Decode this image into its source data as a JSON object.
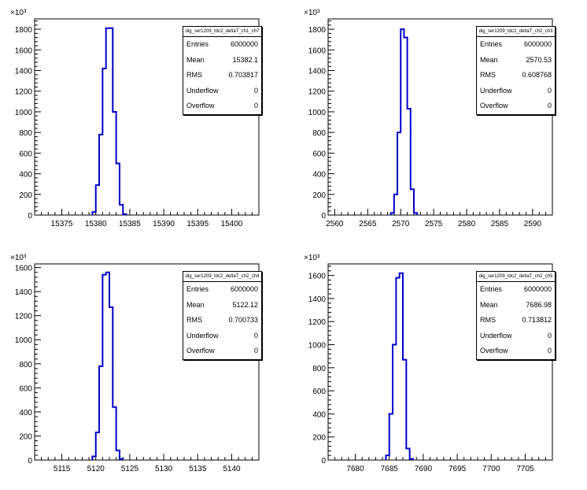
{
  "colors": {
    "hist": "#0000cc",
    "axis": "#000000",
    "background": "#ffffff"
  },
  "chart_data": [
    {
      "type": "histogram",
      "stats_title": "dig_ser1209_tdc2_deltaT_ch1_ch7",
      "stats": [
        {
          "label": "Entries",
          "value": "6000000"
        },
        {
          "label": "Mean",
          "value": "15382.1"
        },
        {
          "label": "RMS",
          "value": "0.703817"
        },
        {
          "label": "Underflow",
          "value": "0"
        },
        {
          "label": "Overflow",
          "value": "0"
        }
      ],
      "xlim": [
        15371,
        15404
      ],
      "ylim": [
        0,
        1900
      ],
      "y_multiplier_label": "×10³",
      "x_ticks": [
        "15375",
        "15380",
        "15385",
        "15390",
        "15395",
        "15400"
      ],
      "y_ticks": [
        "0",
        "200",
        "400",
        "600",
        "800",
        "1000",
        "1200",
        "1400",
        "1600",
        "1800"
      ],
      "bin_width": 0.5,
      "bins": [
        {
          "x": 15379.5,
          "y": 30
        },
        {
          "x": 15380,
          "y": 290
        },
        {
          "x": 15380.5,
          "y": 780
        },
        {
          "x": 15381,
          "y": 1420
        },
        {
          "x": 15381.5,
          "y": 1810
        },
        {
          "x": 15382,
          "y": 1810
        },
        {
          "x": 15382.5,
          "y": 1000
        },
        {
          "x": 15383,
          "y": 500
        },
        {
          "x": 15383.5,
          "y": 100
        },
        {
          "x": 15384,
          "y": 10
        }
      ]
    },
    {
      "type": "histogram",
      "stats_title": "dig_ser1209_tdc2_deltaT_ch2_ch3",
      "stats": [
        {
          "label": "Entries",
          "value": "6000000"
        },
        {
          "label": "Mean",
          "value": "2570.53"
        },
        {
          "label": "RMS",
          "value": "0.608768"
        },
        {
          "label": "Underflow",
          "value": "0"
        },
        {
          "label": "Overflow",
          "value": "0"
        }
      ],
      "xlim": [
        2559,
        2593
      ],
      "ylim": [
        0,
        1900
      ],
      "y_multiplier_label": "×10³",
      "x_ticks": [
        "2560",
        "2565",
        "2570",
        "2575",
        "2580",
        "2585",
        "2590"
      ],
      "y_ticks": [
        "0",
        "200",
        "400",
        "600",
        "800",
        "1000",
        "1200",
        "1400",
        "1600",
        "1800"
      ],
      "bin_width": 0.5,
      "bins": [
        {
          "x": 2568.5,
          "y": 20
        },
        {
          "x": 2569,
          "y": 200
        },
        {
          "x": 2569.5,
          "y": 800
        },
        {
          "x": 2570,
          "y": 1800
        },
        {
          "x": 2570.5,
          "y": 1720
        },
        {
          "x": 2571,
          "y": 1030
        },
        {
          "x": 2571.5,
          "y": 250
        },
        {
          "x": 2572,
          "y": 20
        }
      ]
    },
    {
      "type": "histogram",
      "stats_title": "dig_ser1209_tdc2_deltaT_ch2_ch4",
      "stats": [
        {
          "label": "Entries",
          "value": "6000000"
        },
        {
          "label": "Mean",
          "value": "5122.12"
        },
        {
          "label": "RMS",
          "value": "0.700733"
        },
        {
          "label": "Underflow",
          "value": "0"
        },
        {
          "label": "Overflow",
          "value": "0"
        }
      ],
      "xlim": [
        5111,
        5144
      ],
      "ylim": [
        0,
        1630
      ],
      "y_multiplier_label": "×10³",
      "x_ticks": [
        "5115",
        "5120",
        "5125",
        "5130",
        "5135",
        "5140"
      ],
      "y_ticks": [
        "0",
        "200",
        "400",
        "600",
        "800",
        "1000",
        "1200",
        "1400",
        "1600"
      ],
      "bin_width": 0.5,
      "bins": [
        {
          "x": 5119.5,
          "y": 30
        },
        {
          "x": 5120,
          "y": 230
        },
        {
          "x": 5120.5,
          "y": 780
        },
        {
          "x": 5121,
          "y": 1540
        },
        {
          "x": 5121.5,
          "y": 1560
        },
        {
          "x": 5122,
          "y": 1270
        },
        {
          "x": 5122.5,
          "y": 440
        },
        {
          "x": 5123,
          "y": 80
        },
        {
          "x": 5123.5,
          "y": 10
        }
      ]
    },
    {
      "type": "histogram",
      "stats_title": "dig_ser1209_tdc2_deltaT_ch2_ch5",
      "stats": [
        {
          "label": "Entries",
          "value": "6000000"
        },
        {
          "label": "Mean",
          "value": "7686.98"
        },
        {
          "label": "RMS",
          "value": "0.713812"
        },
        {
          "label": "Underflow",
          "value": "0"
        },
        {
          "label": "Overflow",
          "value": "0"
        }
      ],
      "xlim": [
        7676,
        7709
      ],
      "ylim": [
        0,
        1700
      ],
      "y_multiplier_label": "×10³",
      "x_ticks": [
        "7680",
        "7685",
        "7690",
        "7695",
        "7700",
        "7705"
      ],
      "y_ticks": [
        "0",
        "200",
        "400",
        "600",
        "800",
        "1000",
        "1200",
        "1400",
        "1600"
      ],
      "bin_width": 0.5,
      "bins": [
        {
          "x": 7684.5,
          "y": 40
        },
        {
          "x": 7685,
          "y": 400
        },
        {
          "x": 7685.5,
          "y": 1000
        },
        {
          "x": 7686,
          "y": 1580
        },
        {
          "x": 7686.5,
          "y": 1620
        },
        {
          "x": 7687,
          "y": 870
        },
        {
          "x": 7687.5,
          "y": 100
        },
        {
          "x": 7688,
          "y": 10
        }
      ]
    }
  ]
}
